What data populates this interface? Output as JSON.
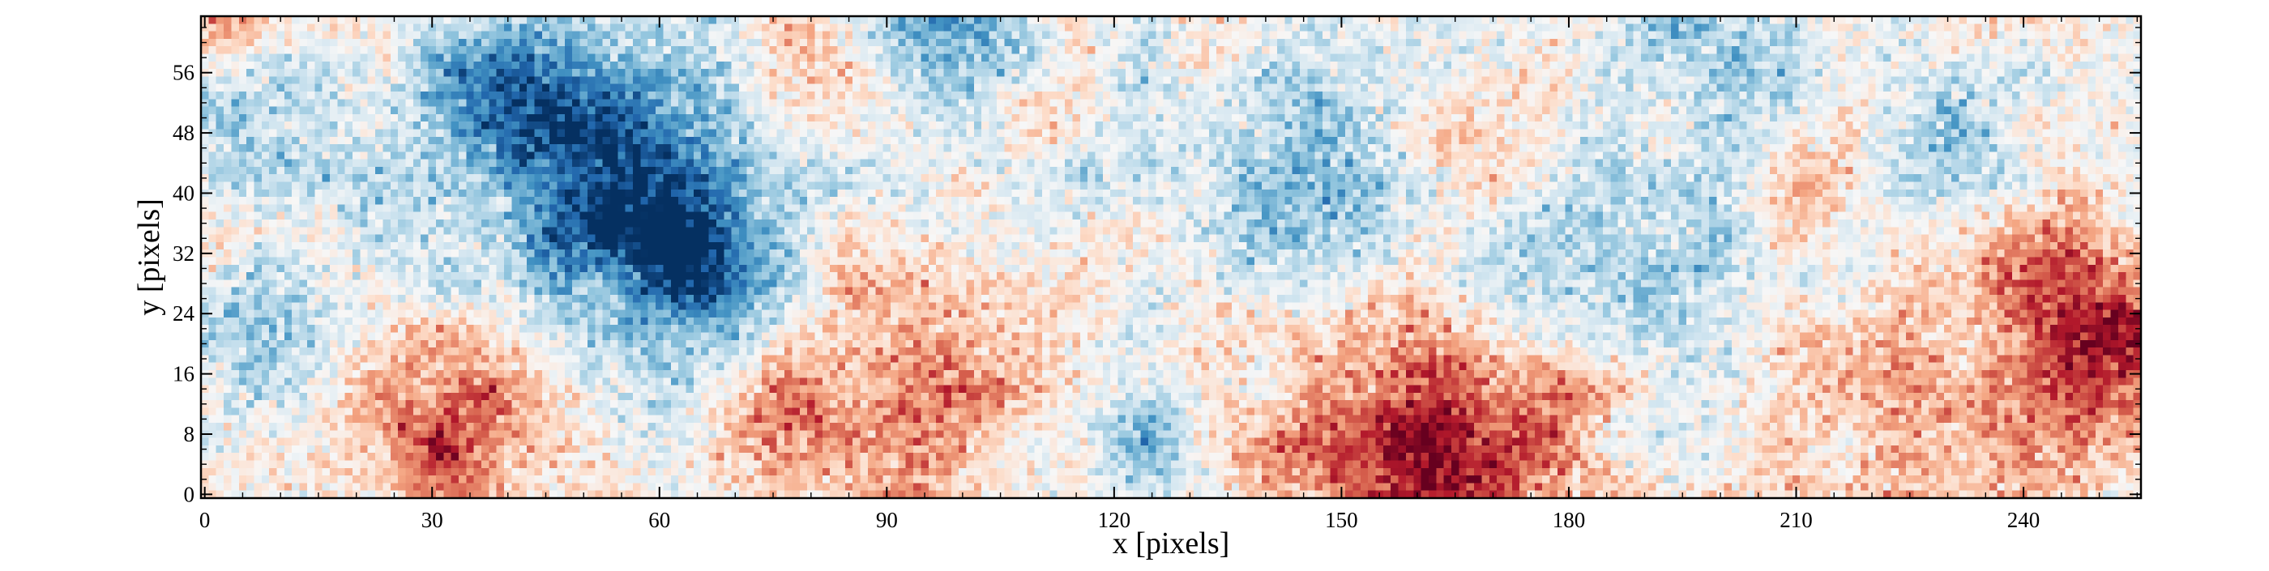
{
  "chart_data": {
    "type": "heatmap",
    "title": "",
    "xlabel": "x [pixels]",
    "ylabel": "y [pixels]",
    "xlim": [
      0,
      255
    ],
    "ylim": [
      0,
      63
    ],
    "grid": false,
    "colormap": "RdBu_r",
    "colorscale_range": [
      -1,
      1
    ],
    "x_ticks": [
      0,
      30,
      60,
      90,
      120,
      150,
      180,
      210,
      240
    ],
    "y_ticks": [
      0,
      8,
      16,
      24,
      32,
      40,
      48,
      56
    ],
    "x_tick_labels": [
      "0",
      "30",
      "60",
      "90",
      "120",
      "150",
      "180",
      "210",
      "240"
    ],
    "y_tick_labels": [
      "0",
      "8",
      "16",
      "24",
      "32",
      "40",
      "48",
      "56"
    ],
    "features": [
      {
        "kind": "blue",
        "x": 56,
        "y": 41,
        "amplitude": 0.85,
        "radius": 13
      },
      {
        "kind": "blue",
        "x": 37,
        "y": 51,
        "amplitude": 0.5,
        "radius": 9
      },
      {
        "kind": "blue",
        "x": 66,
        "y": 31,
        "amplitude": 0.6,
        "radius": 6
      },
      {
        "kind": "blue",
        "x": 100,
        "y": 60,
        "amplitude": 0.6,
        "radius": 7
      },
      {
        "kind": "blue",
        "x": 125,
        "y": 8,
        "amplitude": 0.55,
        "radius": 5
      },
      {
        "kind": "blue",
        "x": 145,
        "y": 41,
        "amplitude": 0.45,
        "radius": 11
      },
      {
        "kind": "blue",
        "x": 6,
        "y": 52,
        "amplitude": 0.45,
        "radius": 6
      },
      {
        "kind": "blue",
        "x": 10,
        "y": 24,
        "amplitude": 0.35,
        "radius": 8
      },
      {
        "kind": "blue",
        "x": 200,
        "y": 59,
        "amplitude": 0.4,
        "radius": 8
      },
      {
        "kind": "blue",
        "x": 186,
        "y": 32,
        "amplitude": 0.35,
        "radius": 8
      },
      {
        "kind": "blue",
        "x": 232,
        "y": 45,
        "amplitude": 0.35,
        "radius": 7
      },
      {
        "kind": "blue",
        "x": 170,
        "y": 31,
        "amplitude": 0.3,
        "radius": 7
      },
      {
        "kind": "blue",
        "x": 200,
        "y": 28,
        "amplitude": 0.25,
        "radius": 7
      },
      {
        "kind": "red",
        "x": 163,
        "y": 5,
        "amplitude": 0.85,
        "radius": 13
      },
      {
        "kind": "red",
        "x": 249,
        "y": 19,
        "amplitude": 0.8,
        "radius": 9
      },
      {
        "kind": "red",
        "x": 32,
        "y": 8,
        "amplitude": 0.65,
        "radius": 9
      },
      {
        "kind": "red",
        "x": 77,
        "y": 9,
        "amplitude": 0.5,
        "radius": 7
      },
      {
        "kind": "red",
        "x": 95,
        "y": 22,
        "amplitude": 0.45,
        "radius": 9
      },
      {
        "kind": "red",
        "x": 97,
        "y": 5,
        "amplitude": 0.4,
        "radius": 7
      },
      {
        "kind": "red",
        "x": 238,
        "y": 33,
        "amplitude": 0.45,
        "radius": 8
      },
      {
        "kind": "red",
        "x": 167,
        "y": 46,
        "amplitude": 0.35,
        "radius": 7
      },
      {
        "kind": "red",
        "x": 216,
        "y": 15,
        "amplitude": 0.35,
        "radius": 8
      },
      {
        "kind": "red",
        "x": 76,
        "y": 58,
        "amplitude": 0.3,
        "radius": 6
      },
      {
        "kind": "red",
        "x": 110,
        "y": 53,
        "amplitude": 0.3,
        "radius": 5
      },
      {
        "kind": "red",
        "x": 3,
        "y": 62,
        "amplitude": 0.3,
        "radius": 4
      },
      {
        "kind": "red",
        "x": 233,
        "y": 3,
        "amplitude": 0.3,
        "radius": 6
      },
      {
        "kind": "red",
        "x": 140,
        "y": 2,
        "amplitude": 0.3,
        "radius": 6
      },
      {
        "kind": "red",
        "x": 210,
        "y": 40,
        "amplitude": 0.25,
        "radius": 6
      }
    ],
    "noise_amplitude": 0.22
  }
}
